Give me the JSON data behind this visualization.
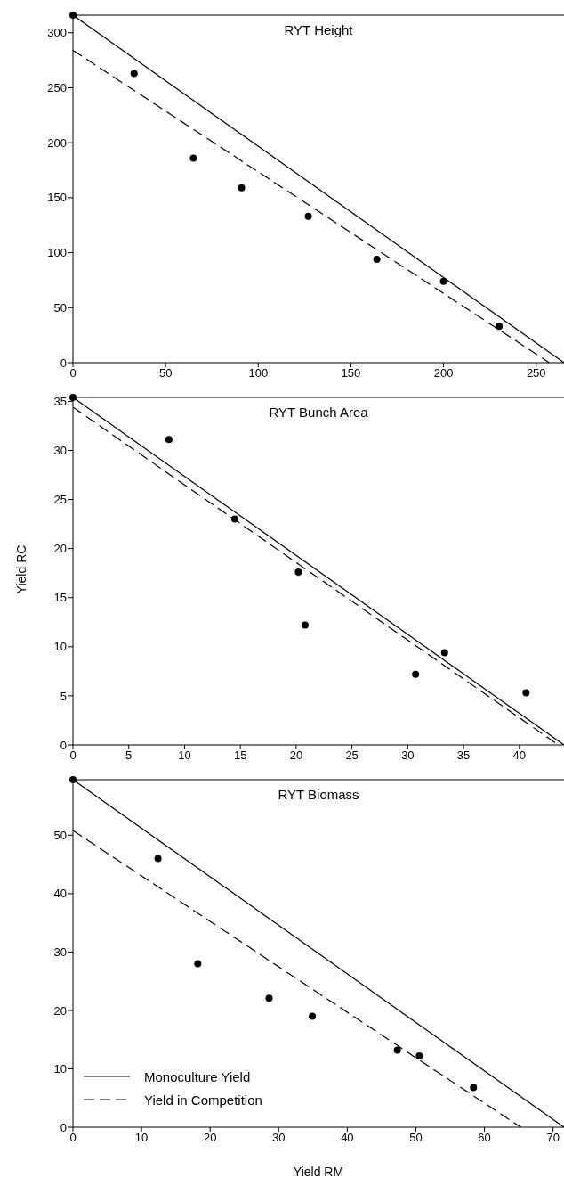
{
  "chart_data": [
    {
      "type": "scatter",
      "title": "RYT Height",
      "xlim": [
        0,
        265
      ],
      "ylim": [
        0,
        316
      ],
      "xticks": [
        0,
        50,
        100,
        150,
        200,
        250
      ],
      "yticks": [
        0,
        50,
        100,
        150,
        200,
        250,
        300
      ],
      "series": [
        {
          "type": "line",
          "color": "#000000",
          "line_style": "solid",
          "marker": "none",
          "x": [
            0,
            265
          ],
          "values": [
            316,
            0
          ]
        },
        {
          "type": "line",
          "color": "#000000",
          "line_style": "dashed",
          "marker": "none",
          "x": [
            0,
            257
          ],
          "values": [
            284,
            0
          ]
        },
        {
          "color": "#000000",
          "marker": "circle",
          "x": [
            0,
            33,
            65,
            91,
            127,
            164,
            200,
            230
          ],
          "values": [
            316,
            263,
            186,
            159,
            133,
            94,
            74,
            33
          ]
        }
      ]
    },
    {
      "type": "scatter",
      "title": "RYT Bunch Area",
      "ylabel": "Yield RC",
      "xlim": [
        0,
        44
      ],
      "ylim": [
        0,
        35.4
      ],
      "xticks": [
        0,
        5,
        10,
        15,
        20,
        25,
        30,
        35,
        40
      ],
      "yticks": [
        0,
        5,
        10,
        15,
        20,
        25,
        30,
        35
      ],
      "series": [
        {
          "type": "line",
          "color": "#000000",
          "line_style": "solid",
          "marker": "none",
          "x": [
            0,
            44
          ],
          "values": [
            35.4,
            0
          ]
        },
        {
          "type": "line",
          "color": "#000000",
          "line_style": "dashed",
          "marker": "none",
          "x": [
            0,
            43.5
          ],
          "values": [
            34.4,
            0
          ]
        },
        {
          "color": "#000000",
          "marker": "circle",
          "x": [
            0,
            8.6,
            14.5,
            20.2,
            20.8,
            30.7,
            33.3,
            40.6
          ],
          "values": [
            35.4,
            31.1,
            23.0,
            17.6,
            12.2,
            7.2,
            9.4,
            5.3
          ]
        }
      ]
    },
    {
      "type": "scatter",
      "title": "RYT Biomass",
      "xlabel": "Yield RM",
      "xlim": [
        0,
        71.6
      ],
      "ylim": [
        0,
        59.5
      ],
      "xticks": [
        0,
        10,
        20,
        30,
        40,
        50,
        60,
        70
      ],
      "yticks": [
        0,
        10,
        20,
        30,
        40,
        50
      ],
      "legend": "bottom left",
      "series": [
        {
          "type": "line",
          "name": "Monoculture Yield",
          "color": "#000000",
          "line_style": "solid",
          "marker": "none",
          "x": [
            0,
            71.6
          ],
          "values": [
            59.5,
            0
          ]
        },
        {
          "type": "line",
          "name": "Yield in Competition",
          "color": "#000000",
          "line_style": "dashed",
          "marker": "none",
          "x": [
            0,
            65.3
          ],
          "values": [
            50.8,
            0
          ]
        },
        {
          "color": "#000000",
          "marker": "circle",
          "x": [
            0,
            12.4,
            18.2,
            28.6,
            34.9,
            47.3,
            50.5,
            58.4
          ],
          "values": [
            59.5,
            46.0,
            28.0,
            22.1,
            19.0,
            13.2,
            12.2,
            6.8
          ]
        }
      ]
    }
  ]
}
